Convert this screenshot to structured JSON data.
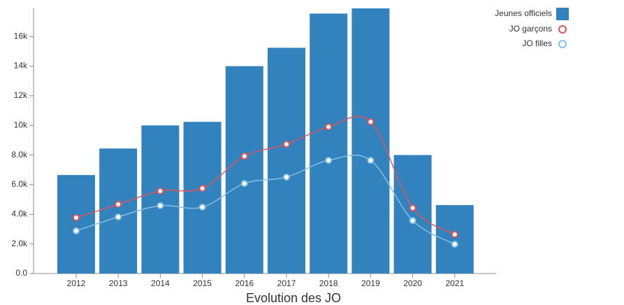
{
  "chart_data": {
    "type": "bar",
    "x_label": "Evolution des JO",
    "categories": [
      "2012",
      "2013",
      "2014",
      "2015",
      "2016",
      "2017",
      "2018",
      "2019",
      "2020",
      "2021"
    ],
    "series": [
      {
        "name": "Jeunes officiels",
        "type": "bar",
        "color": "#3182bd",
        "values": [
          6650,
          8440,
          10000,
          10240,
          14000,
          15240,
          17550,
          17900,
          8000,
          4620
        ]
      },
      {
        "name": "JO garçons",
        "type": "line",
        "color": "#e0545a",
        "values": [
          3770,
          4670,
          5570,
          5750,
          7920,
          8730,
          9900,
          10240,
          4430,
          2640
        ]
      },
      {
        "name": "JO filles",
        "type": "line",
        "color": "#86bde3",
        "values": [
          2880,
          3820,
          4580,
          4480,
          6080,
          6510,
          7640,
          7640,
          3580,
          1980
        ]
      }
    ],
    "ylim": [
      0,
      17900
    ],
    "yticks": [
      {
        "value": 0,
        "label": "0.0"
      },
      {
        "value": 2000,
        "label": "2.0k"
      },
      {
        "value": 4000,
        "label": "4.0k"
      },
      {
        "value": 6000,
        "label": "6.0k"
      },
      {
        "value": 8000,
        "label": "8.0k"
      },
      {
        "value": 10000,
        "label": "10k"
      },
      {
        "value": 12000,
        "label": "12k"
      },
      {
        "value": 14000,
        "label": "14k"
      },
      {
        "value": 16000,
        "label": "16k"
      }
    ],
    "grid": false,
    "legend": "top-right"
  }
}
